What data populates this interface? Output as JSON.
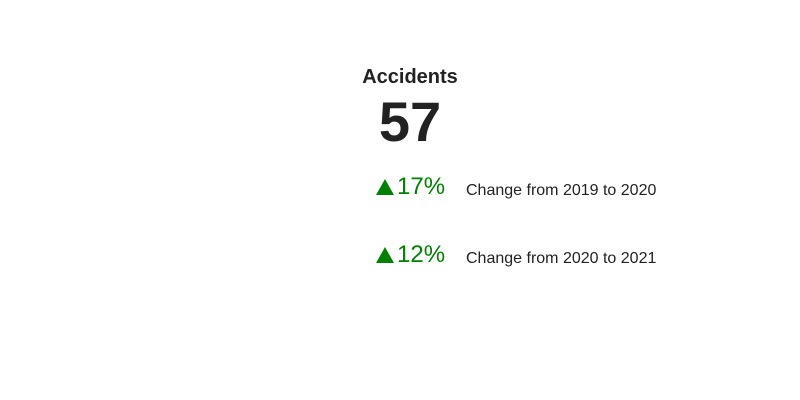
{
  "kpi": {
    "title": "Accidents",
    "value": "57"
  },
  "changes": [
    {
      "delta": "17%",
      "direction": "up",
      "label": "Change from 2019 to 2020",
      "color": "#008000"
    },
    {
      "delta": "12%",
      "direction": "up",
      "label": "Change from 2020 to 2021",
      "color": "#008000"
    }
  ],
  "icons": {
    "delta_icon": "arrow-up-icon"
  }
}
